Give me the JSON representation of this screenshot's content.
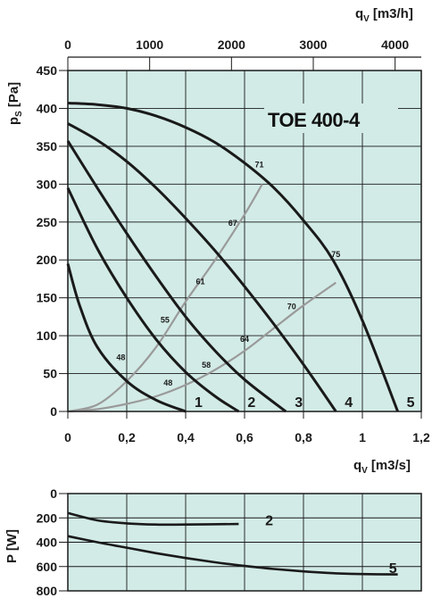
{
  "chart_data": [
    {
      "type": "line",
      "title": "TOE 400-4",
      "ylabel": "p",
      "ylabel_sub": "S",
      "ylabel_unit": "[Pa]",
      "xlabel": "q",
      "xlabel_sub": "V",
      "xlabel_unit": "[m3/s]",
      "top_xlabel_unit": "[m3/h]",
      "xlim": [
        0,
        1.2
      ],
      "ylim": [
        0,
        450
      ],
      "xticks": [
        "0",
        "0,2",
        "0,4",
        "0,6",
        "0,8",
        "1",
        "1,2"
      ],
      "yticks": [
        "0",
        "50",
        "100",
        "150",
        "200",
        "250",
        "300",
        "350",
        "400",
        "450"
      ],
      "top_xticks": [
        "0",
        "1000",
        "2000",
        "3000",
        "4000"
      ],
      "top_xtick_values_m3h": [
        0,
        1000,
        2000,
        3000,
        4000
      ],
      "grid": true,
      "colors": {
        "background": "#d2ebe6",
        "curve": "#1a1a1a",
        "isoline": "#9a9a9a"
      },
      "series": [
        {
          "name": "1",
          "x": [
            0,
            0.04,
            0.1,
            0.2,
            0.3,
            0.4
          ],
          "y": [
            195,
            140,
            85,
            40,
            15,
            0
          ]
        },
        {
          "name": "2",
          "x": [
            0,
            0.1,
            0.2,
            0.3,
            0.4,
            0.5,
            0.58
          ],
          "y": [
            295,
            215,
            150,
            95,
            52,
            20,
            0
          ]
        },
        {
          "name": "3",
          "x": [
            0,
            0.1,
            0.2,
            0.3,
            0.4,
            0.5,
            0.6,
            0.74
          ],
          "y": [
            357,
            295,
            235,
            178,
            125,
            80,
            42,
            0
          ]
        },
        {
          "name": "4",
          "x": [
            0,
            0.1,
            0.2,
            0.3,
            0.4,
            0.5,
            0.6,
            0.7,
            0.8,
            0.91
          ],
          "y": [
            380,
            358,
            330,
            295,
            255,
            212,
            165,
            115,
            62,
            0
          ]
        },
        {
          "name": "5",
          "x": [
            0,
            0.1,
            0.2,
            0.3,
            0.4,
            0.5,
            0.6,
            0.7,
            0.8,
            0.9,
            1.0,
            1.12
          ],
          "y": [
            407,
            405,
            400,
            390,
            375,
            355,
            328,
            295,
            252,
            200,
            120,
            0
          ]
        }
      ],
      "isolines": [
        {
          "x": [
            0,
            0.1,
            0.2,
            0.3,
            0.4,
            0.5,
            0.6,
            0.66
          ],
          "y": [
            0,
            9,
            40,
            85,
            145,
            200,
            260,
            300
          ]
        },
        {
          "x": [
            0,
            0.1,
            0.2,
            0.3,
            0.4,
            0.5,
            0.6,
            0.7,
            0.8,
            0.91
          ],
          "y": [
            0,
            3,
            10,
            20,
            35,
            55,
            80,
            110,
            140,
            170
          ]
        }
      ],
      "isoline_labels": [
        {
          "text": "71",
          "x": 0.65,
          "y": 322
        },
        {
          "text": "67",
          "x": 0.56,
          "y": 245
        },
        {
          "text": "61",
          "x": 0.45,
          "y": 168
        },
        {
          "text": "55",
          "x": 0.33,
          "y": 117
        },
        {
          "text": "48",
          "x": 0.18,
          "y": 68
        },
        {
          "text": "75",
          "x": 0.91,
          "y": 204
        },
        {
          "text": "70",
          "x": 0.76,
          "y": 135
        },
        {
          "text": "64",
          "x": 0.6,
          "y": 92
        },
        {
          "text": "58",
          "x": 0.47,
          "y": 58
        },
        {
          "text": "48",
          "x": 0.34,
          "y": 34
        }
      ]
    },
    {
      "type": "line",
      "ylabel": "P [W]",
      "xlim": [
        0,
        1.2
      ],
      "ylim": [
        0,
        800
      ],
      "y_inverted": true,
      "yticks": [
        "0",
        "200",
        "400",
        "600",
        "800"
      ],
      "grid": true,
      "series": [
        {
          "name": "2",
          "x": [
            0,
            0.1,
            0.2,
            0.3,
            0.4,
            0.58
          ],
          "y": [
            160,
            220,
            245,
            255,
            255,
            250
          ]
        },
        {
          "name": "5",
          "x": [
            0,
            0.1,
            0.2,
            0.3,
            0.4,
            0.5,
            0.6,
            0.7,
            0.8,
            0.9,
            1.0,
            1.12
          ],
          "y": [
            350,
            400,
            445,
            490,
            530,
            565,
            595,
            620,
            640,
            655,
            662,
            665
          ]
        }
      ]
    }
  ]
}
